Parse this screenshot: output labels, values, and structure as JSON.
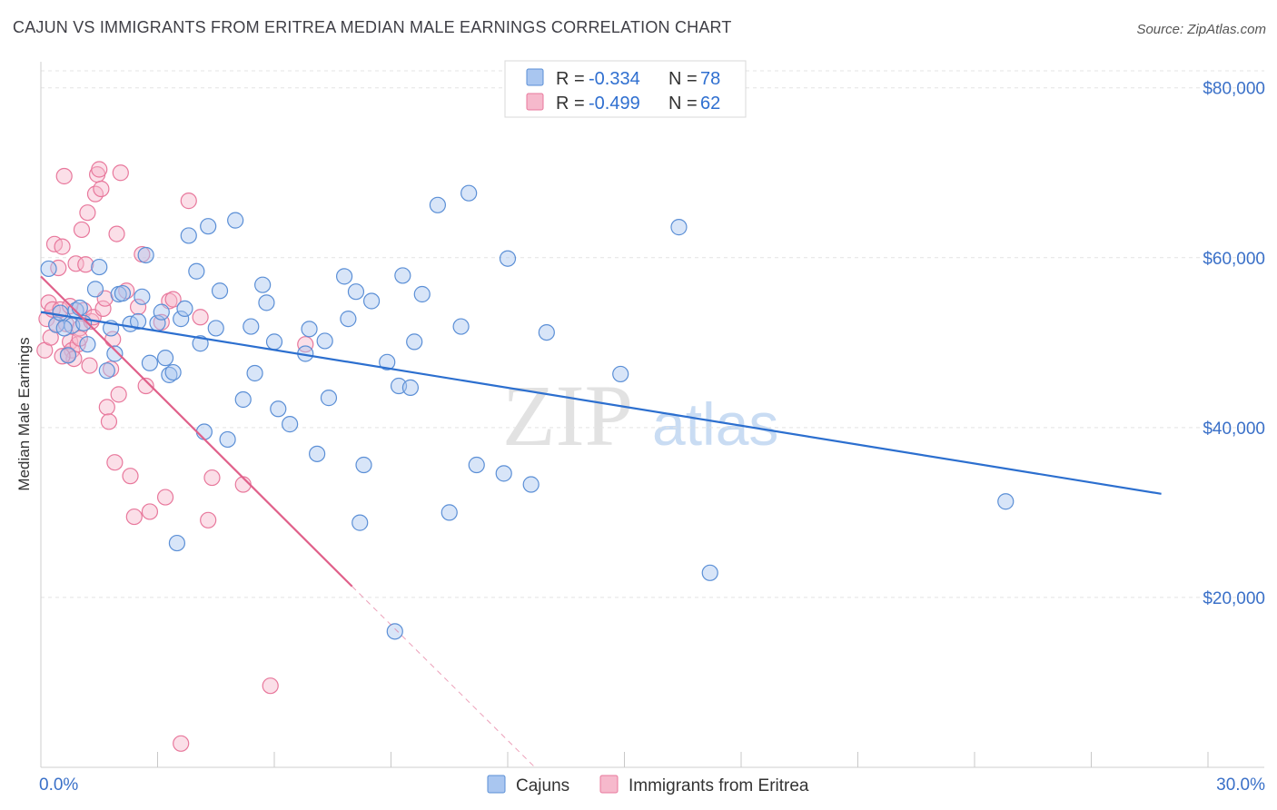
{
  "header": {
    "title": "CAJUN VS IMMIGRANTS FROM ERITREA MEDIAN MALE EARNINGS CORRELATION CHART",
    "source": "Source: ZipAtlas.com"
  },
  "watermark": {
    "zip": "ZIP",
    "atlas": "atlas"
  },
  "colors": {
    "blue_fill": "#a9c6f0",
    "blue_stroke": "#5b8fd6",
    "blue_line": "#2c6fcf",
    "pink_fill": "#f6b9cc",
    "pink_stroke": "#e8789c",
    "pink_line": "#e0608a"
  },
  "legend": {
    "rows": [
      {
        "r_label": "R = ",
        "r_value": "-0.334",
        "n_label": "N = ",
        "n_value": "78"
      },
      {
        "r_label": "R = ",
        "r_value": "-0.499",
        "n_label": "N = ",
        "n_value": "62"
      }
    ]
  },
  "bottom_legend": {
    "series_a": "Cajuns",
    "series_b": "Immigrants from Eritrea"
  },
  "chart_data": {
    "type": "scatter",
    "title": "CAJUN VS IMMIGRANTS FROM ERITREA MEDIAN MALE EARNINGS CORRELATION CHART",
    "xlabel": "",
    "ylabel": "Median Male Earnings",
    "xlim": [
      0,
      30
    ],
    "ylim": [
      0,
      82000
    ],
    "x_tick_labels": [
      "0.0%",
      "30.0%"
    ],
    "y_ticks": [
      20000,
      40000,
      60000,
      80000
    ],
    "y_tick_labels": [
      "$20,000",
      "$40,000",
      "$60,000",
      "$80,000"
    ],
    "grid": true,
    "series": [
      {
        "name": "Cajuns",
        "r": -0.334,
        "n": 78,
        "trend": {
          "x0": 0.0,
          "y0": 53600,
          "x1": 28.8,
          "y1": 32200
        },
        "points": [
          [
            0.2,
            58700
          ],
          [
            0.4,
            52100
          ],
          [
            0.5,
            53500
          ],
          [
            0.7,
            48500
          ],
          [
            0.8,
            52000
          ],
          [
            0.9,
            53800
          ],
          [
            1.0,
            54100
          ],
          [
            1.1,
            52300
          ],
          [
            1.2,
            49800
          ],
          [
            1.4,
            56300
          ],
          [
            1.5,
            58900
          ],
          [
            1.7,
            46700
          ],
          [
            1.8,
            51700
          ],
          [
            1.9,
            48700
          ],
          [
            2.0,
            55700
          ],
          [
            2.1,
            55800
          ],
          [
            2.3,
            52200
          ],
          [
            2.5,
            52500
          ],
          [
            2.6,
            55400
          ],
          [
            2.7,
            60300
          ],
          [
            2.8,
            47600
          ],
          [
            3.0,
            52300
          ],
          [
            3.1,
            53600
          ],
          [
            3.2,
            48200
          ],
          [
            3.3,
            46200
          ],
          [
            3.4,
            46500
          ],
          [
            3.6,
            52800
          ],
          [
            3.7,
            54000
          ],
          [
            3.8,
            62600
          ],
          [
            4.0,
            58400
          ],
          [
            4.1,
            49900
          ],
          [
            4.2,
            39500
          ],
          [
            4.3,
            63700
          ],
          [
            4.5,
            51700
          ],
          [
            4.6,
            56100
          ],
          [
            4.8,
            38600
          ],
          [
            5.0,
            64400
          ],
          [
            5.2,
            43300
          ],
          [
            5.4,
            51900
          ],
          [
            5.5,
            46400
          ],
          [
            5.7,
            56800
          ],
          [
            5.8,
            54700
          ],
          [
            6.0,
            50100
          ],
          [
            6.1,
            42200
          ],
          [
            6.4,
            40400
          ],
          [
            6.8,
            48700
          ],
          [
            6.9,
            51600
          ],
          [
            7.1,
            36900
          ],
          [
            7.3,
            50200
          ],
          [
            7.4,
            43500
          ],
          [
            7.8,
            57800
          ],
          [
            7.9,
            52800
          ],
          [
            8.1,
            56000
          ],
          [
            8.2,
            28800
          ],
          [
            8.3,
            35600
          ],
          [
            8.5,
            54900
          ],
          [
            8.9,
            47700
          ],
          [
            9.1,
            16000
          ],
          [
            9.2,
            44900
          ],
          [
            9.3,
            57900
          ],
          [
            9.5,
            44700
          ],
          [
            9.6,
            50100
          ],
          [
            9.8,
            55700
          ],
          [
            10.2,
            66200
          ],
          [
            10.5,
            30000
          ],
          [
            10.8,
            51900
          ],
          [
            11.0,
            67600
          ],
          [
            11.2,
            35600
          ],
          [
            11.9,
            34600
          ],
          [
            12.0,
            59900
          ],
          [
            12.6,
            33300
          ],
          [
            13.0,
            51200
          ],
          [
            14.9,
            46300
          ],
          [
            16.4,
            63600
          ],
          [
            17.2,
            22900
          ],
          [
            24.8,
            31300
          ],
          [
            0.6,
            51700
          ],
          [
            3.5,
            26400
          ]
        ]
      },
      {
        "name": "Immigrants from Eritrea",
        "r": -0.499,
        "n": 62,
        "trend": {
          "x0": 0.0,
          "y0": 57800,
          "x1": 8.0,
          "y1": 21300,
          "dash_x1": 12.7,
          "dash_y1": 0
        },
        "points": [
          [
            0.1,
            49100
          ],
          [
            0.15,
            52800
          ],
          [
            0.2,
            54700
          ],
          [
            0.25,
            50600
          ],
          [
            0.3,
            53900
          ],
          [
            0.35,
            61600
          ],
          [
            0.4,
            52100
          ],
          [
            0.45,
            58800
          ],
          [
            0.5,
            53900
          ],
          [
            0.55,
            61300
          ],
          [
            0.6,
            69600
          ],
          [
            0.65,
            52200
          ],
          [
            0.7,
            48600
          ],
          [
            0.75,
            50100
          ],
          [
            0.8,
            49100
          ],
          [
            0.85,
            48100
          ],
          [
            0.9,
            59300
          ],
          [
            0.95,
            49800
          ],
          [
            1.0,
            51700
          ],
          [
            1.05,
            63300
          ],
          [
            1.1,
            53800
          ],
          [
            1.15,
            59200
          ],
          [
            1.2,
            65300
          ],
          [
            1.25,
            47300
          ],
          [
            1.3,
            52500
          ],
          [
            1.35,
            53000
          ],
          [
            1.4,
            67500
          ],
          [
            1.45,
            69800
          ],
          [
            1.5,
            70400
          ],
          [
            1.55,
            68100
          ],
          [
            1.6,
            54000
          ],
          [
            1.65,
            55200
          ],
          [
            1.7,
            42400
          ],
          [
            1.75,
            40700
          ],
          [
            1.8,
            46900
          ],
          [
            1.85,
            50400
          ],
          [
            1.9,
            35900
          ],
          [
            1.95,
            62800
          ],
          [
            2.0,
            43900
          ],
          [
            2.05,
            70000
          ],
          [
            2.2,
            56100
          ],
          [
            2.3,
            34300
          ],
          [
            2.4,
            29500
          ],
          [
            2.5,
            54200
          ],
          [
            2.6,
            60400
          ],
          [
            2.7,
            44900
          ],
          [
            2.8,
            30100
          ],
          [
            3.1,
            52400
          ],
          [
            3.2,
            31800
          ],
          [
            3.3,
            54900
          ],
          [
            3.4,
            55100
          ],
          [
            3.6,
            2800
          ],
          [
            3.8,
            66700
          ],
          [
            4.1,
            53000
          ],
          [
            4.3,
            29100
          ],
          [
            4.4,
            34100
          ],
          [
            5.2,
            33300
          ],
          [
            5.9,
            9600
          ],
          [
            6.8,
            49800
          ],
          [
            0.55,
            48400
          ],
          [
            0.75,
            54300
          ],
          [
            1.0,
            50500
          ]
        ]
      }
    ]
  }
}
